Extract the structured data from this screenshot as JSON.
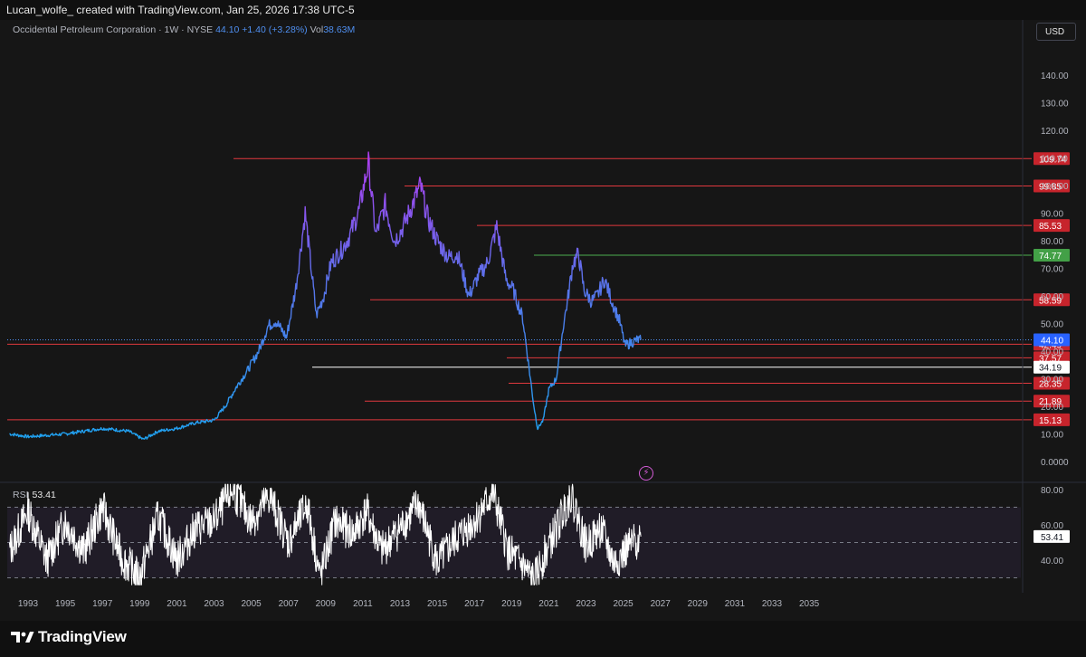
{
  "header": {
    "author": "Lucan_wolfe_",
    "created_with": "created with TradingView.com, Jan 25, 2026 17:38 UTC-5"
  },
  "legend": {
    "symbol": "Occidental Petroleum Corporation · 1W · NYSE",
    "price": "44.10",
    "change": "+1.40 (+3.28%)",
    "vol_label": "Vol",
    "vol_value": "38.63M"
  },
  "currency_button": "USD",
  "rsi": {
    "label": "RSI",
    "value": "53.41"
  },
  "footer": {
    "brand": "TradingView"
  },
  "chart_data": [
    {
      "type": "line",
      "title": "Occidental Petroleum Corporation · 1W · NYSE",
      "y_axis_ticks": [
        "140.00",
        "130.00",
        "120.00",
        "110.00",
        "100.00",
        "90.00",
        "80.00",
        "70.00",
        "60.00",
        "50.00",
        "40.00",
        "30.00",
        "20.00",
        "10.00",
        "0.0000"
      ],
      "x_axis_ticks": [
        "1993",
        "1995",
        "1997",
        "1999",
        "2001",
        "2003",
        "2005",
        "2007",
        "2009",
        "2011",
        "2013",
        "2015",
        "2017",
        "2019",
        "2021",
        "2023",
        "2025",
        "2027",
        "2029",
        "2031",
        "2033",
        "2035"
      ],
      "ylim": [
        0,
        145
      ],
      "series": [
        {
          "x": [
            1992.0,
            1993.0,
            1995.0,
            1997.0,
            1998.4,
            1999.2,
            2000.0,
            2001.0,
            2002.0,
            2003.0,
            2003.6,
            2004.2,
            2004.8,
            2005.4,
            2005.9,
            2006.3,
            2006.9,
            2007.4,
            2007.9,
            2008.5,
            2008.9,
            2009.3,
            2009.9,
            2010.3,
            2010.8,
            2011.3,
            2011.7,
            2012.2,
            2012.7,
            2013.1,
            2013.6,
            2014.1,
            2014.5,
            2015.0,
            2015.6,
            2016.1,
            2016.7,
            2017.2,
            2017.7,
            2018.2,
            2018.7,
            2019.1,
            2019.6,
            2019.9,
            2020.2,
            2020.4,
            2020.7,
            2021.0,
            2021.4,
            2021.8,
            2022.0,
            2022.3,
            2022.6,
            2022.9,
            2023.3,
            2023.6,
            2024.0,
            2024.4,
            2024.8,
            2025.1,
            2025.4,
            2025.7,
            2025.95
          ],
          "y": [
            10,
            9,
            10,
            12,
            11,
            8,
            11,
            12,
            14,
            15,
            20,
            27,
            33,
            40,
            49,
            51,
            45,
            63,
            90,
            53,
            60,
            72,
            77,
            82,
            91,
            108,
            82,
            93,
            80,
            84,
            92,
            100,
            88,
            80,
            74,
            75,
            60,
            67,
            72,
            85,
            66,
            62,
            52,
            36,
            20,
            12,
            15,
            26,
            30,
            50,
            58,
            72,
            75,
            62,
            58,
            60,
            66,
            58,
            51,
            42,
            43,
            44,
            44.1
          ]
        }
      ],
      "horizontal_levels": [
        {
          "value": 109.74,
          "label": "109.74",
          "color": "#e0383e"
        },
        {
          "value": 99.85,
          "label": "99.85",
          "color": "#e0383e"
        },
        {
          "value": 85.53,
          "label": "85.53",
          "color": "#e0383e"
        },
        {
          "value": 74.77,
          "label": "74.77",
          "color": "#4caf50"
        },
        {
          "value": 58.59,
          "label": "58.59",
          "color": "#e0383e"
        },
        {
          "value": 42.49,
          "label": "42.49",
          "color": "#e0383e"
        },
        {
          "value": 37.57,
          "label": "37.57",
          "color": "#e0383e"
        },
        {
          "value": 34.19,
          "label": "34.19",
          "color": "#ffffff"
        },
        {
          "value": 28.35,
          "label": "28.35",
          "color": "#e0383e"
        },
        {
          "value": 21.89,
          "label": "21.89",
          "color": "#e0383e"
        },
        {
          "value": 15.13,
          "label": "15.13",
          "color": "#e0383e"
        }
      ],
      "last_price": {
        "value": 44.1,
        "label": "44.10",
        "color": "#2962ff"
      },
      "grid": false
    },
    {
      "type": "line",
      "title": "RSI",
      "y_axis_ticks": [
        "80.00",
        "60.00",
        "40.00"
      ],
      "ylim": [
        25,
        85
      ],
      "band": [
        30,
        70
      ],
      "midline": 50,
      "series": [
        {
          "x": [
            1992.0,
            1993.0,
            1994.0,
            1995.0,
            1996.0,
            1997.0,
            1998.0,
            1999.0,
            2000.0,
            2001.0,
            2002.0,
            2003.0,
            2004.0,
            2005.0,
            2006.0,
            2007.0,
            2008.0,
            2008.7,
            2009.5,
            2010.5,
            2011.2,
            2012.0,
            2013.0,
            2014.0,
            2015.0,
            2016.0,
            2017.0,
            2018.0,
            2018.8,
            2019.5,
            2020.2,
            2020.8,
            2021.5,
            2022.2,
            2023.0,
            2023.8,
            2024.5,
            2025.2,
            2025.95
          ],
          "y": [
            45,
            68,
            40,
            62,
            45,
            70,
            42,
            30,
            65,
            40,
            58,
            62,
            80,
            62,
            76,
            50,
            72,
            30,
            62,
            55,
            68,
            45,
            58,
            72,
            38,
            52,
            62,
            78,
            45,
            38,
            28,
            44,
            60,
            78,
            48,
            58,
            38,
            46,
            53.41
          ]
        }
      ],
      "last_value": {
        "value": 53.41,
        "label": "53.41"
      }
    }
  ]
}
